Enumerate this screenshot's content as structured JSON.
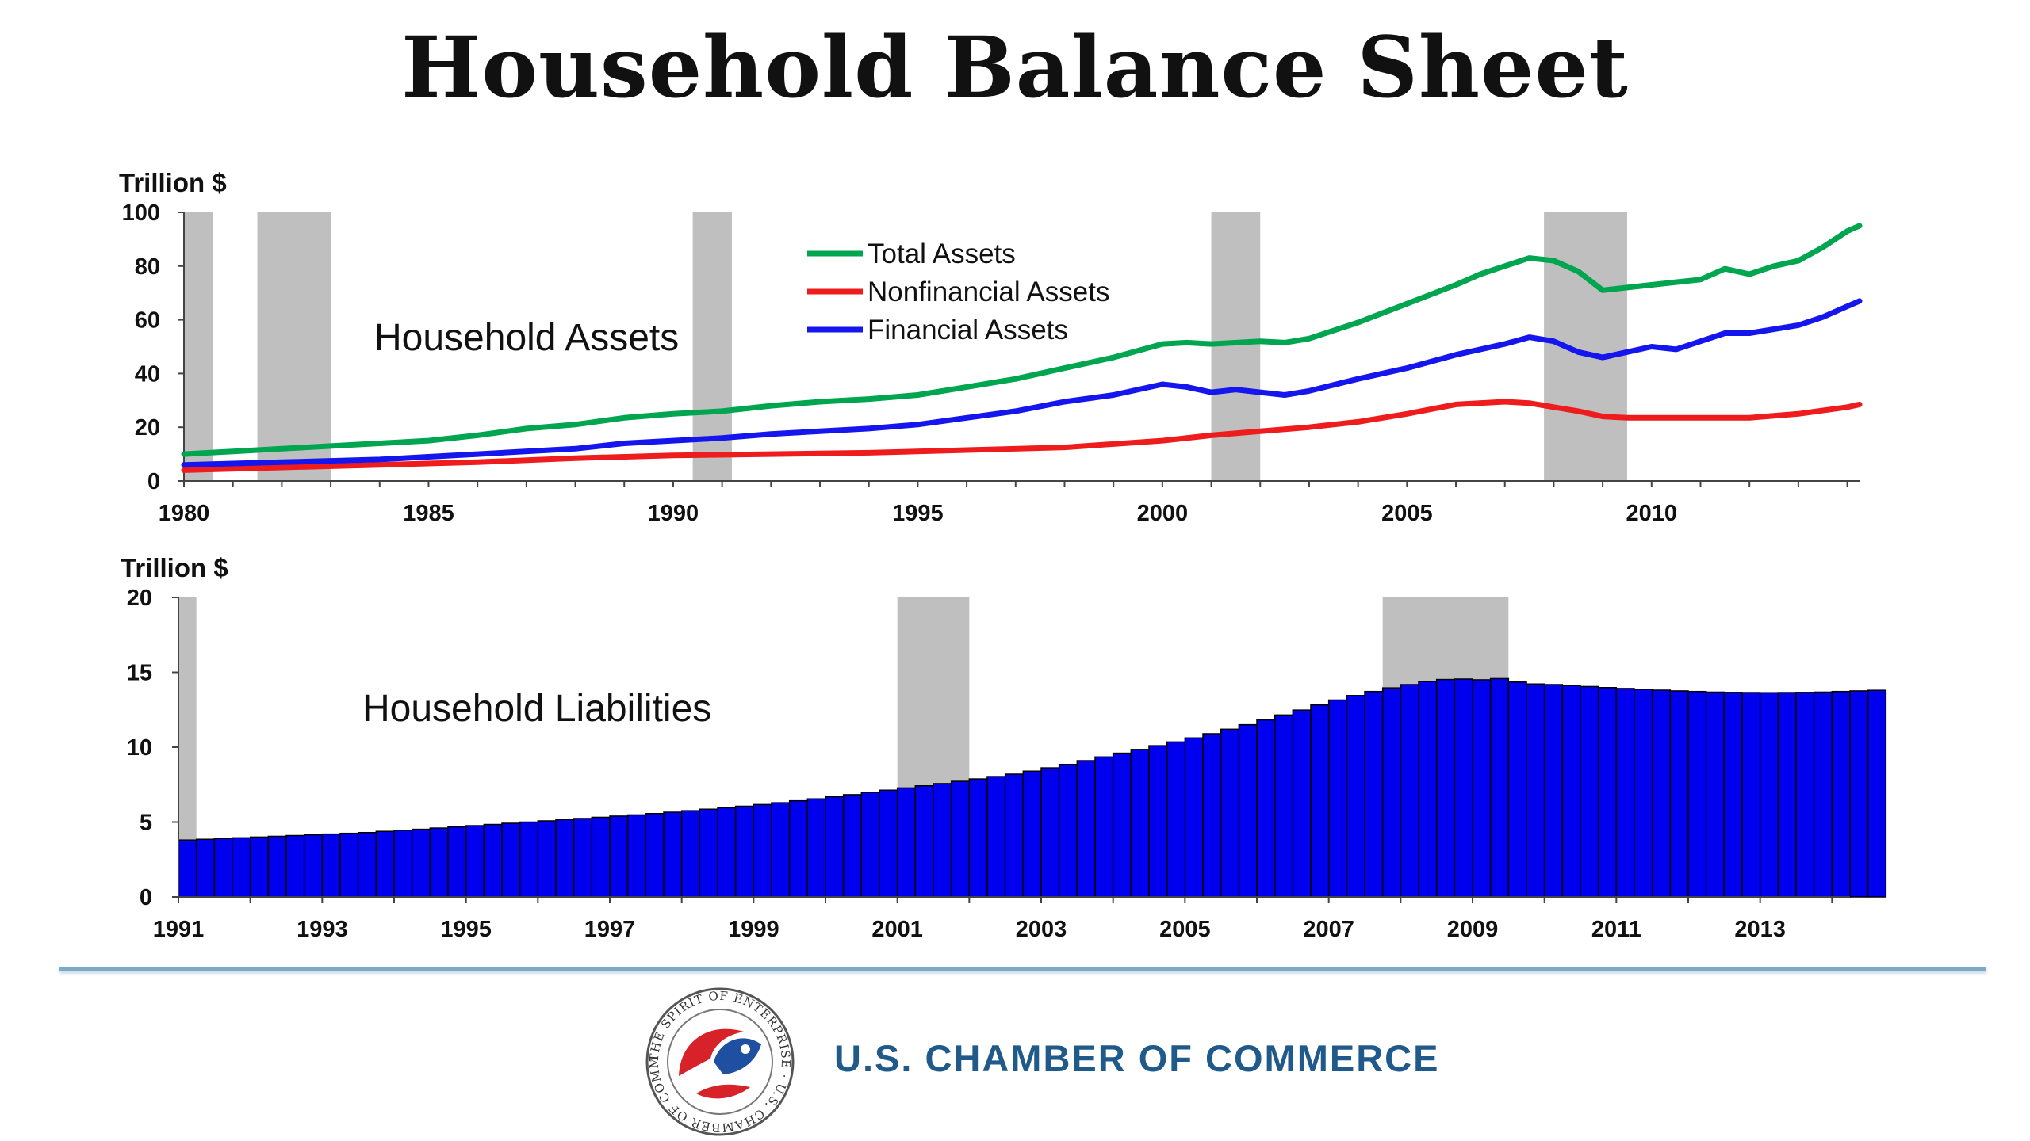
{
  "title": "Household Balance Sheet",
  "colors": {
    "total_assets": "#00a550",
    "nonfinancial_assets": "#ee1c1c",
    "financial_assets": "#1515ee",
    "liabilities_bar": "#0000ee",
    "recession_shading": "#bfbfbf",
    "brand": "#1f5a8a"
  },
  "footer": {
    "org_name": "U.S. CHAMBER OF COMMERCE",
    "seal_text": "THE SPIRIT OF ENTERPRISE · U.S. CHAMBER OF COMMERCE"
  },
  "chart_data": [
    {
      "type": "line",
      "ylabel": "Trillion $",
      "inner_label": "Household Assets",
      "xlim": [
        1980,
        2014.25
      ],
      "ylim": [
        0,
        100
      ],
      "x_ticks": [
        1980,
        1985,
        1990,
        1995,
        2000,
        2005,
        2010
      ],
      "y_ticks": [
        0,
        20,
        40,
        60,
        80,
        100
      ],
      "legend_position": "top-center",
      "recessions": [
        [
          1980.0,
          1980.6
        ],
        [
          1981.5,
          1983.0
        ],
        [
          1990.4,
          1991.2
        ],
        [
          2001.0,
          2002.0
        ],
        [
          2007.8,
          2009.5
        ]
      ],
      "series": [
        {
          "name": "Total Assets",
          "x": [
            1980,
            1981,
            1982,
            1983,
            1984,
            1985,
            1986,
            1987,
            1988,
            1989,
            1990,
            1991,
            1992,
            1993,
            1994,
            1995,
            1996,
            1997,
            1998,
            1999,
            2000,
            2000.5,
            2001,
            2002,
            2002.5,
            2003,
            2004,
            2005,
            2006,
            2006.5,
            2007,
            2007.5,
            2008,
            2008.5,
            2009,
            2009.5,
            2010,
            2010.5,
            2011,
            2011.5,
            2012,
            2012.5,
            2013,
            2013.5,
            2014,
            2014.25
          ],
          "y": [
            10,
            11,
            12,
            13,
            14,
            15,
            17,
            19.5,
            21,
            23.5,
            25,
            26,
            28,
            29.5,
            30.5,
            32,
            35,
            38,
            42,
            46,
            51,
            51.5,
            51,
            52,
            51.5,
            53,
            59,
            66,
            73,
            77,
            80,
            83,
            82,
            78,
            71,
            72,
            73,
            74,
            75,
            79,
            77,
            80,
            82,
            87,
            93,
            95
          ]
        },
        {
          "name": "Nonfinancial Assets",
          "x": [
            1980,
            1982,
            1984,
            1986,
            1988,
            1990,
            1992,
            1994,
            1996,
            1998,
            2000,
            2001,
            2002,
            2003,
            2004,
            2005,
            2006,
            2007,
            2007.5,
            2008,
            2008.5,
            2009,
            2009.5,
            2010,
            2011,
            2012,
            2013,
            2014,
            2014.25
          ],
          "y": [
            4,
            5,
            6,
            7,
            8.5,
            9.5,
            10,
            10.5,
            11.5,
            12.5,
            15,
            17,
            18.5,
            20,
            22,
            25,
            28.5,
            29.5,
            29,
            27.5,
            26,
            24,
            23.5,
            23.5,
            23.5,
            23.5,
            25,
            27.5,
            28.5
          ]
        },
        {
          "name": "Financial Assets",
          "x": [
            1980,
            1982,
            1984,
            1986,
            1988,
            1989,
            1990,
            1991,
            1992,
            1993,
            1994,
            1995,
            1996,
            1997,
            1998,
            1999,
            2000,
            2000.5,
            2001,
            2001.5,
            2002,
            2002.5,
            2003,
            2004,
            2005,
            2006,
            2006.5,
            2007,
            2007.5,
            2008,
            2008.5,
            2009,
            2009.5,
            2010,
            2010.5,
            2011,
            2011.5,
            2012,
            2012.5,
            2013,
            2013.5,
            2014,
            2014.25
          ],
          "y": [
            6,
            7,
            8,
            10,
            12,
            14,
            15,
            16,
            17.5,
            18.5,
            19.5,
            21,
            23.5,
            26,
            29.5,
            32,
            36,
            35,
            33,
            34,
            33,
            32,
            33.5,
            38,
            42,
            47,
            49,
            51,
            53.5,
            52,
            48,
            46,
            48,
            50,
            49,
            52,
            55,
            55,
            56.5,
            58,
            61,
            65,
            67
          ]
        }
      ]
    },
    {
      "type": "bar",
      "ylabel": "Trillion $",
      "inner_label": "Household Liabilities",
      "xlim": [
        1991,
        2014.25
      ],
      "ylim": [
        0,
        20
      ],
      "x_ticks": [
        1991,
        1993,
        1995,
        1997,
        1999,
        2001,
        2003,
        2005,
        2007,
        2009,
        2011,
        2013
      ],
      "y_ticks": [
        0,
        5,
        10,
        15,
        20
      ],
      "recessions": [
        [
          1991.0,
          1991.25
        ],
        [
          2001.0,
          2002.0
        ],
        [
          2007.75,
          2009.5
        ]
      ],
      "series": [
        {
          "name": "Household Liabilities",
          "start": 1991,
          "frequency": "quarterly",
          "values": [
            3.8,
            3.85,
            3.9,
            3.95,
            4.0,
            4.05,
            4.1,
            4.15,
            4.2,
            4.25,
            4.3,
            4.38,
            4.45,
            4.52,
            4.6,
            4.68,
            4.76,
            4.84,
            4.92,
            5.0,
            5.08,
            5.16,
            5.24,
            5.32,
            5.4,
            5.48,
            5.57,
            5.66,
            5.76,
            5.86,
            5.96,
            6.06,
            6.17,
            6.29,
            6.42,
            6.55,
            6.69,
            6.83,
            6.98,
            7.13,
            7.28,
            7.42,
            7.57,
            7.72,
            7.88,
            8.04,
            8.2,
            8.4,
            8.62,
            8.85,
            9.1,
            9.35,
            9.6,
            9.85,
            10.1,
            10.35,
            10.62,
            10.9,
            11.2,
            11.5,
            11.82,
            12.15,
            12.48,
            12.82,
            13.15,
            13.45,
            13.72,
            13.96,
            14.18,
            14.38,
            14.52,
            14.55,
            14.5,
            14.58,
            14.35,
            14.22,
            14.18,
            14.12,
            14.05,
            13.98,
            13.92,
            13.86,
            13.81,
            13.76,
            13.72,
            13.68,
            13.66,
            13.65,
            13.64,
            13.65,
            13.66,
            13.68,
            13.72,
            13.76,
            13.8
          ]
        }
      ]
    }
  ]
}
